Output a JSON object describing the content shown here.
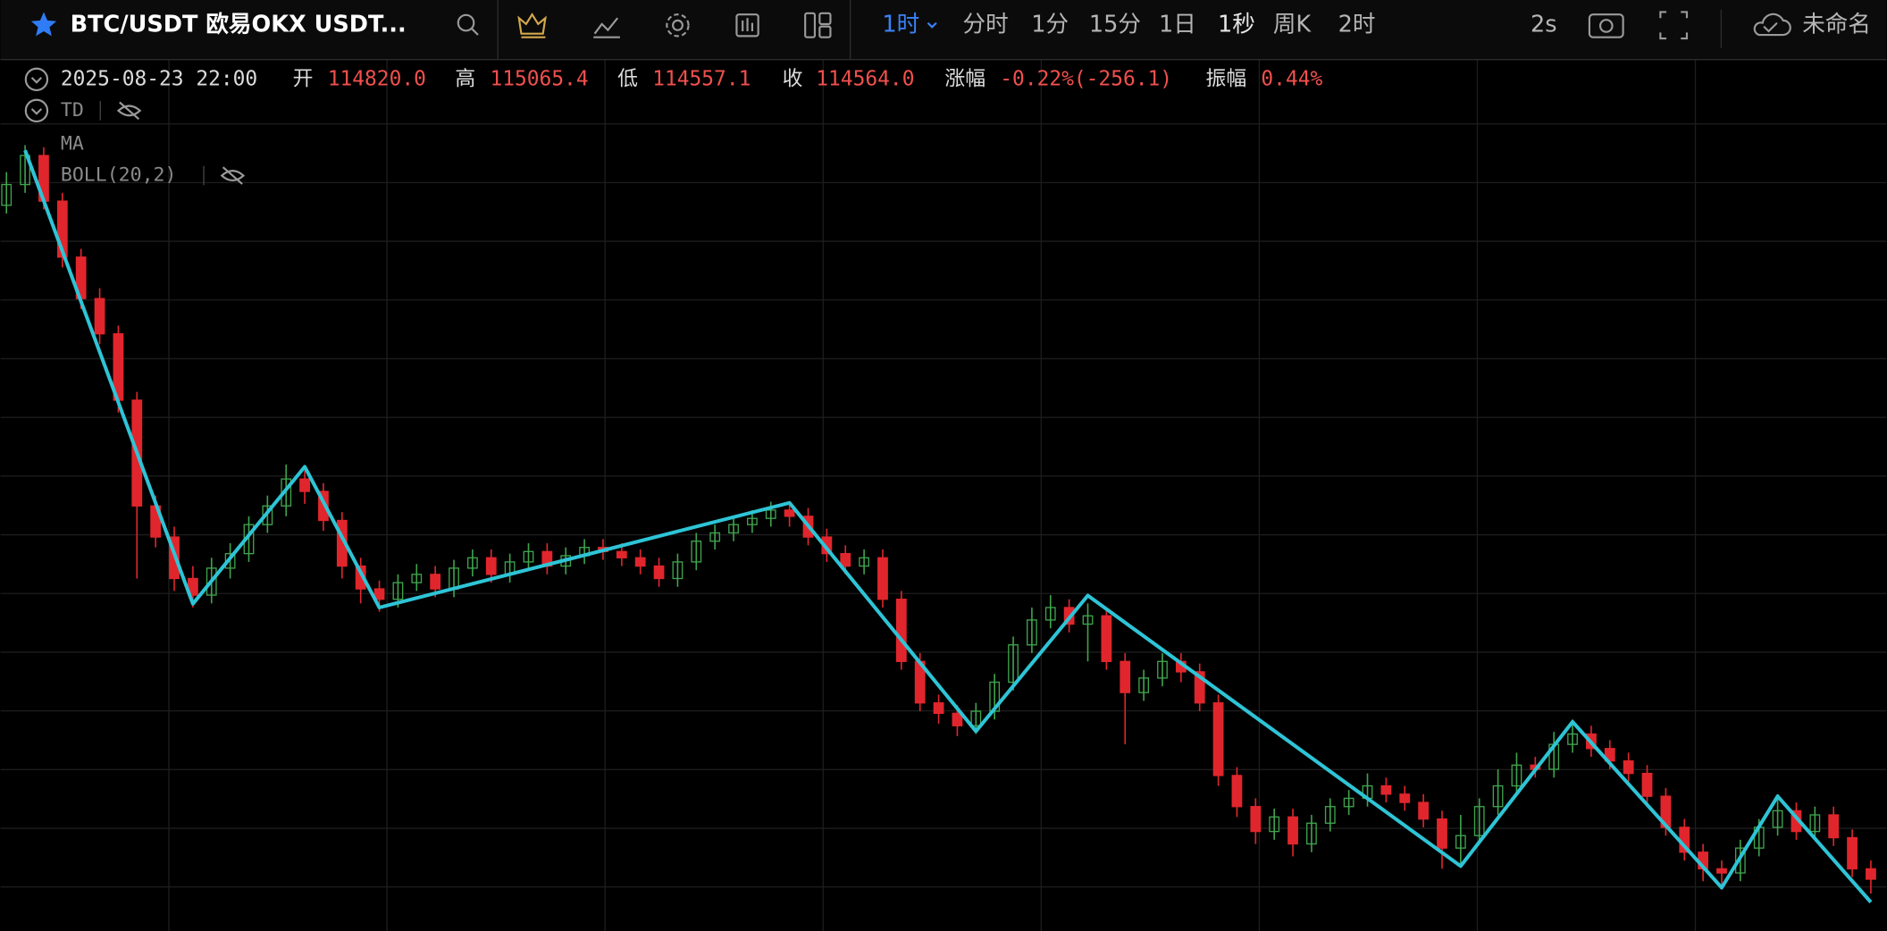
{
  "toolbar": {
    "symbol": "BTC/USDT 欧易OKX USDT...",
    "periods": [
      "1时",
      "分时",
      "1分",
      "15分",
      "1日",
      "1秒",
      "周K",
      "2时"
    ],
    "refresh": "2s",
    "layout_name": "未命名"
  },
  "info": {
    "datetime": "2025-08-23 22:00",
    "open_label": "开",
    "open": "114820.0",
    "high_label": "高",
    "high": "115065.4",
    "low_label": "低",
    "low": "114557.1",
    "close_label": "收",
    "close": "114564.0",
    "change_label": "涨幅",
    "change": "-0.22%(-256.1)",
    "amplitude_label": "振幅",
    "amplitude": "0.44%"
  },
  "indicators": [
    "TD",
    "MA",
    "BOLL(20,2)"
  ],
  "chart_data": {
    "type": "candlestick",
    "up_color": "#3fa34d",
    "down_color": "#e0262c",
    "ylim": [
      111000,
      115200
    ],
    "xlim": [
      -0.32,
      100.84
    ],
    "candles": [
      [
        114500,
        114660,
        114460,
        114600
      ],
      [
        114600,
        114790,
        114560,
        114740
      ],
      [
        114740,
        114780,
        114480,
        114520
      ],
      [
        114520,
        114560,
        114200,
        114250
      ],
      [
        114250,
        114290,
        114000,
        114050
      ],
      [
        114050,
        114100,
        113830,
        113880
      ],
      [
        113880,
        113920,
        113500,
        113560
      ],
      [
        113560,
        113600,
        112700,
        113050
      ],
      [
        113050,
        113100,
        112850,
        112900
      ],
      [
        112900,
        112950,
        112640,
        112700
      ],
      [
        112700,
        112760,
        112560,
        112620
      ],
      [
        112620,
        112800,
        112580,
        112750
      ],
      [
        112750,
        112870,
        112700,
        112820
      ],
      [
        112820,
        113000,
        112780,
        112960
      ],
      [
        112960,
        113100,
        112920,
        113050
      ],
      [
        113050,
        113250,
        113000,
        113180
      ],
      [
        113180,
        113220,
        113060,
        113120
      ],
      [
        113120,
        113160,
        112930,
        112980
      ],
      [
        112980,
        113020,
        112700,
        112760
      ],
      [
        112760,
        112800,
        112580,
        112650
      ],
      [
        112650,
        112690,
        112540,
        112600
      ],
      [
        112600,
        112720,
        112560,
        112680
      ],
      [
        112680,
        112770,
        112640,
        112720
      ],
      [
        112720,
        112760,
        112610,
        112650
      ],
      [
        112650,
        112790,
        112610,
        112750
      ],
      [
        112750,
        112840,
        112710,
        112800
      ],
      [
        112800,
        112840,
        112680,
        112720
      ],
      [
        112720,
        112820,
        112680,
        112780
      ],
      [
        112780,
        112870,
        112740,
        112830
      ],
      [
        112830,
        112870,
        112720,
        112760
      ],
      [
        112760,
        112850,
        112720,
        112810
      ],
      [
        112810,
        112890,
        112770,
        112850
      ],
      [
        112850,
        112890,
        112790,
        112830
      ],
      [
        112830,
        112870,
        112760,
        112800
      ],
      [
        112800,
        112840,
        112720,
        112760
      ],
      [
        112760,
        112800,
        112660,
        112700
      ],
      [
        112700,
        112820,
        112660,
        112780
      ],
      [
        112780,
        112920,
        112740,
        112880
      ],
      [
        112880,
        112960,
        112840,
        112920
      ],
      [
        112920,
        113000,
        112880,
        112960
      ],
      [
        112960,
        113030,
        112920,
        112990
      ],
      [
        112990,
        113070,
        112950,
        113030
      ],
      [
        113030,
        113070,
        112950,
        113000
      ],
      [
        113000,
        113040,
        112860,
        112900
      ],
      [
        112900,
        112940,
        112780,
        112820
      ],
      [
        112820,
        112860,
        112720,
        112760
      ],
      [
        112760,
        112840,
        112720,
        112800
      ],
      [
        112800,
        112840,
        112560,
        112600
      ],
      [
        112600,
        112640,
        112260,
        112300
      ],
      [
        112300,
        112340,
        112060,
        112100
      ],
      [
        112100,
        112140,
        112000,
        112050
      ],
      [
        112050,
        112090,
        111940,
        111990
      ],
      [
        111990,
        112100,
        111950,
        112060
      ],
      [
        112060,
        112240,
        112020,
        112200
      ],
      [
        112200,
        112420,
        112160,
        112380
      ],
      [
        112380,
        112560,
        112340,
        112500
      ],
      [
        112500,
        112620,
        112460,
        112560
      ],
      [
        112560,
        112600,
        112440,
        112480
      ],
      [
        112480,
        112580,
        112300,
        112520
      ],
      [
        112520,
        112560,
        112260,
        112300
      ],
      [
        112300,
        112340,
        111900,
        112150
      ],
      [
        112150,
        112260,
        112110,
        112220
      ],
      [
        112220,
        112340,
        112180,
        112300
      ],
      [
        112300,
        112340,
        112200,
        112250
      ],
      [
        112250,
        112290,
        112060,
        112100
      ],
      [
        112100,
        112140,
        111700,
        111750
      ],
      [
        111750,
        111790,
        111550,
        111600
      ],
      [
        111600,
        111640,
        111420,
        111480
      ],
      [
        111480,
        111590,
        111440,
        111550
      ],
      [
        111550,
        111590,
        111360,
        111420
      ],
      [
        111420,
        111560,
        111380,
        111520
      ],
      [
        111520,
        111640,
        111480,
        111600
      ],
      [
        111600,
        111680,
        111560,
        111640
      ],
      [
        111640,
        111760,
        111600,
        111700
      ],
      [
        111700,
        111740,
        111620,
        111660
      ],
      [
        111660,
        111700,
        111580,
        111620
      ],
      [
        111620,
        111660,
        111500,
        111540
      ],
      [
        111540,
        111580,
        111300,
        111400
      ],
      [
        111400,
        111560,
        111320,
        111460
      ],
      [
        111460,
        111640,
        111420,
        111600
      ],
      [
        111600,
        111780,
        111560,
        111700
      ],
      [
        111700,
        111860,
        111660,
        111800
      ],
      [
        111800,
        111840,
        111740,
        111780
      ],
      [
        111780,
        111960,
        111740,
        111900
      ],
      [
        111900,
        112020,
        111860,
        111950
      ],
      [
        111950,
        111990,
        111840,
        111880
      ],
      [
        111880,
        111920,
        111780,
        111820
      ],
      [
        111820,
        111860,
        111720,
        111760
      ],
      [
        111760,
        111800,
        111610,
        111650
      ],
      [
        111650,
        111690,
        111460,
        111500
      ],
      [
        111500,
        111540,
        111340,
        111380
      ],
      [
        111380,
        111420,
        111240,
        111300
      ],
      [
        111300,
        111340,
        111200,
        111280
      ],
      [
        111280,
        111440,
        111240,
        111400
      ],
      [
        111400,
        111540,
        111360,
        111500
      ],
      [
        111500,
        111660,
        111460,
        111580
      ],
      [
        111580,
        111620,
        111440,
        111480
      ],
      [
        111480,
        111600,
        111440,
        111560
      ],
      [
        111560,
        111600,
        111410,
        111450
      ],
      [
        111450,
        111490,
        111260,
        111300
      ],
      [
        111300,
        111340,
        111180,
        111250
      ]
    ],
    "zigzag": {
      "color": "#2ec4d6",
      "x": [
        1,
        10,
        16,
        20,
        42,
        52,
        58,
        78,
        84,
        92,
        95,
        100
      ],
      "values": [
        114765,
        112578,
        113239,
        112560,
        113065,
        111963,
        112618,
        111313,
        112009,
        111209,
        111650,
        111139
      ]
    }
  }
}
